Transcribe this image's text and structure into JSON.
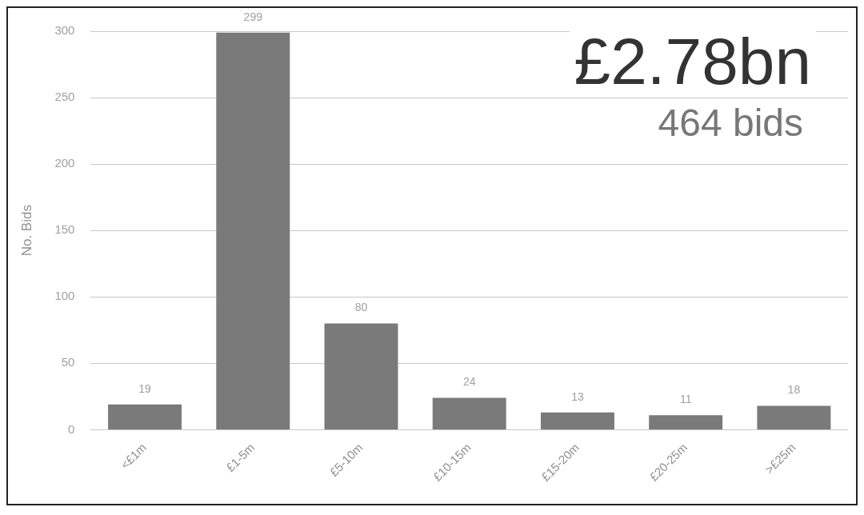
{
  "chart_data": {
    "type": "bar",
    "ylabel": "No. Bids",
    "categories": [
      "<£1m",
      "£1-5m",
      "£5-10m",
      "£10-15m",
      "£15-20m",
      "£20-25m",
      ">£25m"
    ],
    "values": [
      19,
      299,
      80,
      24,
      13,
      11,
      18
    ],
    "color": "#7a7a7a",
    "ylim": [
      0,
      300
    ],
    "yticks": [
      0,
      50,
      100,
      150,
      200,
      250,
      300
    ],
    "grid": "y",
    "data_labels": true,
    "annotations": [
      "£2.78bn",
      "464 bids"
    ]
  }
}
